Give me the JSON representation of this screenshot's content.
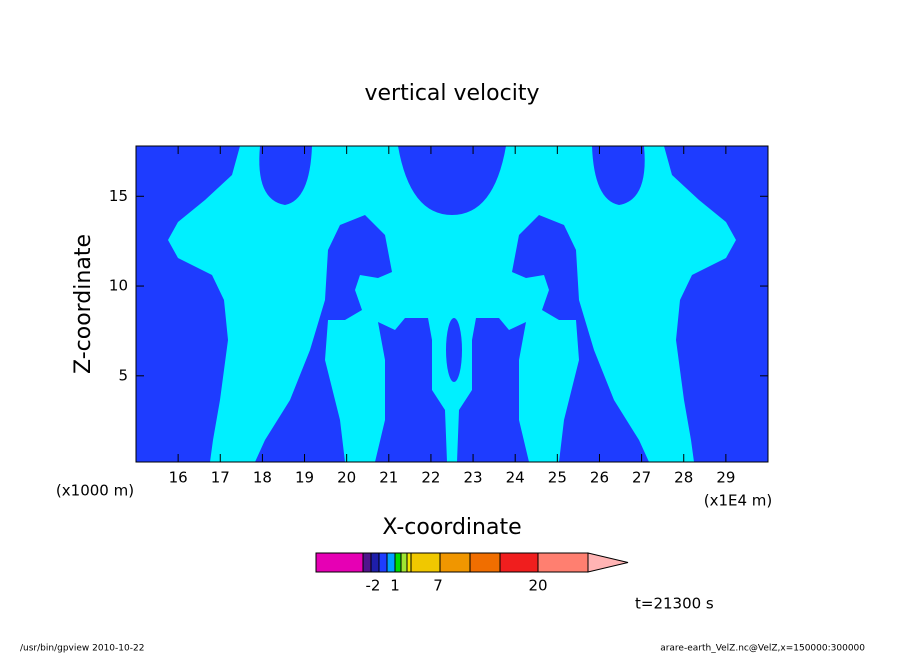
{
  "chart_data": {
    "type": "contour",
    "title": "vertical velocity",
    "xlabel": "X-coordinate",
    "ylabel": "Z-coordinate",
    "x_unit": "(x1E4 m)",
    "y_unit": "(x1000 m)",
    "xlim": [
      15,
      30
    ],
    "xticks": [
      16,
      17,
      18,
      19,
      20,
      21,
      22,
      23,
      24,
      25,
      26,
      27,
      28,
      29
    ],
    "ylim": [
      0.2,
      17.8
    ],
    "yticks": [
      5,
      10,
      15
    ],
    "fill_colors": [
      "#1e3cff",
      "#00f0ff"
    ],
    "colorbar": {
      "colors": [
        "#e600b4",
        "#50148c",
        "#1e1eaa",
        "#1e3cff",
        "#00a0ff",
        "#00dc00",
        "#a0e632",
        "#f0e600",
        "#f0c800",
        "#f09600",
        "#f06e00",
        "#f01e1e",
        "#ff7f70",
        "#ffb4b4"
      ],
      "ticks": [
        -2,
        1,
        7,
        20
      ]
    },
    "time_label": "t=21300 s",
    "footer_left": "/usr/bin/gpview  2010-10-22",
    "footer_right": "arare-earth_VelZ.nc@VelZ,x=150000:300000"
  }
}
